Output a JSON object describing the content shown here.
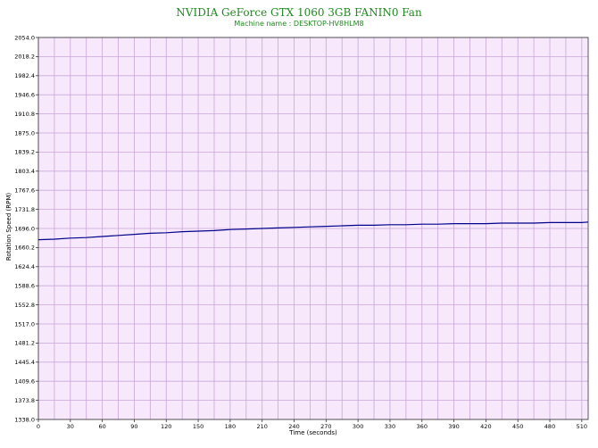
{
  "chart_data": {
    "type": "line",
    "title": "NVIDIA GeForce GTX 1060 3GB FANIN0 Fan",
    "subtitle": "Machine name : DESKTOP-HV8HLM8",
    "xlabel": "Time (seconds)",
    "ylabel": "Rotation Speed (RPM)",
    "xlim": [
      0,
      516
    ],
    "ylim": [
      1338.0,
      2054.0
    ],
    "x_ticks": [
      "0",
      "30",
      "60",
      "90",
      "120",
      "150",
      "180",
      "210",
      "240",
      "270",
      "300",
      "330",
      "360",
      "390",
      "420",
      "450",
      "480",
      "510"
    ],
    "y_ticks": [
      "2054.0",
      "2018.2",
      "1982.4",
      "1946.6",
      "1910.8",
      "1875.0",
      "1839.2",
      "1803.4",
      "1767.6",
      "1731.8",
      "1696.0",
      "1660.2",
      "1624.4",
      "1588.6",
      "1552.8",
      "1517.0",
      "1481.2",
      "1445.4",
      "1409.6",
      "1373.8",
      "1338.0"
    ],
    "grid": true,
    "colors": {
      "line": "#00008b",
      "plot_bg": "#f7e8fc",
      "grid": "#c8a6d8",
      "title": "#1f8a1f"
    },
    "series": [
      {
        "x": [
          0,
          15,
          30,
          45,
          60,
          75,
          90,
          105,
          120,
          135,
          150,
          165,
          180,
          195,
          210,
          225,
          240,
          255,
          270,
          285,
          300,
          315,
          330,
          345,
          360,
          375,
          390,
          405,
          420,
          435,
          450,
          465,
          480,
          495,
          510,
          516
        ],
        "values": [
          1675,
          1676,
          1678,
          1679,
          1681,
          1683,
          1685,
          1687,
          1688,
          1690,
          1691,
          1692,
          1694,
          1695,
          1696,
          1697,
          1698,
          1699,
          1700,
          1701,
          1702,
          1702,
          1703,
          1703,
          1704,
          1704,
          1705,
          1705,
          1705,
          1706,
          1706,
          1706,
          1707,
          1707,
          1707,
          1708
        ]
      }
    ]
  }
}
